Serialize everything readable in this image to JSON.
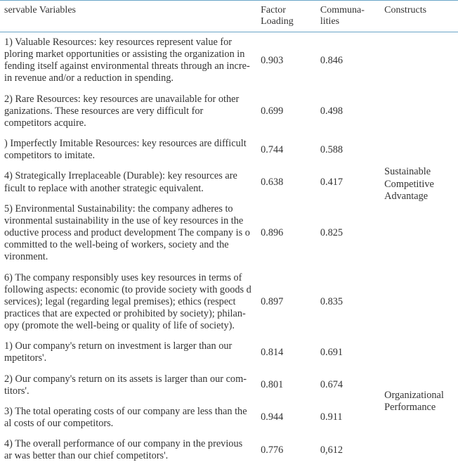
{
  "header": {
    "variables": "servable Variables",
    "loading": "Factor Loading",
    "communalities": "Communa-lities",
    "constructs": "Constructs"
  },
  "rows": [
    {
      "variable": "1) Valuable Resources: key resources represent value for ploring market opportunities or assisting the organization in fending itself against environmental threats through an incre-  in revenue and/or a reduction in spending.",
      "loading": "0.903",
      "communality": "0.846"
    },
    {
      "variable": "2) Rare Resources: key resources are unavailable for other ganizations. These resources are very difficult for competitors  acquire.",
      "loading": "0.699",
      "communality": "0.498"
    },
    {
      "variable": ") Imperfectly Imitable Resources: key resources are difficult  competitors to imitate.",
      "loading": "0.744",
      "communality": "0.588"
    },
    {
      "variable": "4) Strategically Irreplaceable (Durable): key resources are ficult to replace with another strategic equivalent.",
      "loading": "0.638",
      "communality": "0.417"
    },
    {
      "variable": "5) Environmental Sustainability: the company adheres to vironmental sustainability in the use of key resources in the oductive process and product development The company is o committed to the well-being of workers, society and the vironment.",
      "loading": "0.896",
      "communality": "0.825"
    },
    {
      "variable": "6) The company responsibly uses key resources in terms of  following aspects: economic (to provide society with goods d services); legal (regarding legal premises); ethics (respect  practices that are expected or prohibited by society); philan-opy (promote the well-being or quality of life of society).",
      "loading": "0.897",
      "communality": "0.835"
    },
    {
      "variable": "1) Our company's return on investment is larger than our mpetitors'.",
      "loading": "0.814",
      "communality": "0.691"
    },
    {
      "variable": "2) Our company's return on its assets is larger than our com-titors'.",
      "loading": "0.801",
      "communality": "0.674"
    },
    {
      "variable": "3) The total operating costs of our company are less than the al costs of our competitors.",
      "loading": "0.944",
      "communality": "0.911"
    },
    {
      "variable": "4) The overall performance of our company in the previous ar was better than our chief competitors'.",
      "loading": "0.776",
      "communality": "0,612"
    }
  ],
  "constructs": {
    "group1": "Sustainable Competitive Advantage",
    "group2": "Organizational Performance"
  },
  "style": {
    "background_color": "#ffffff",
    "text_color": "#333333",
    "border_color": "#6aa5c8",
    "font_family": "Times New Roman",
    "base_fontsize": 14
  }
}
